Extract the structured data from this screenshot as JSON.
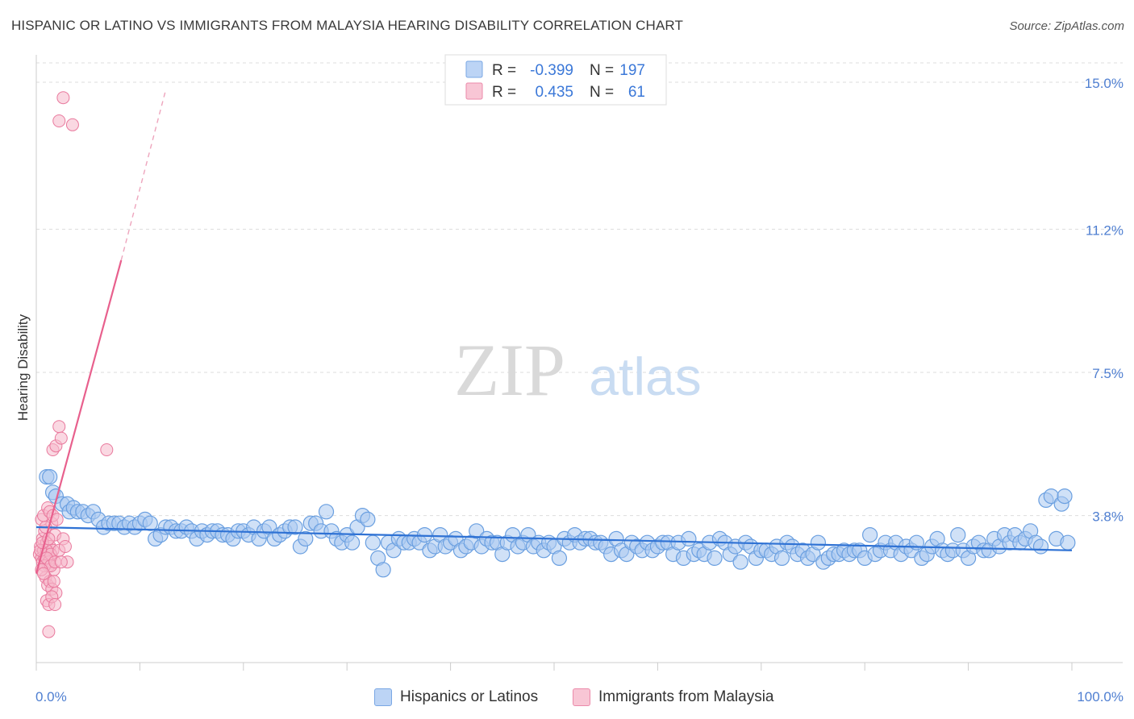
{
  "header": {
    "title": "HISPANIC OR LATINO VS IMMIGRANTS FROM MALAYSIA HEARING DISABILITY CORRELATION CHART",
    "source": "Source: ZipAtlas.com"
  },
  "watermark": {
    "zip": "ZIP",
    "atlas": "atlas"
  },
  "legend_box": {
    "rows": [
      {
        "r_label": "R =",
        "r_value": "-0.399",
        "n_label": "N =",
        "n_value": "197"
      },
      {
        "r_label": "R =",
        "r_value": "0.435",
        "n_label": "N =",
        "n_value": "61"
      }
    ]
  },
  "colors": {
    "blue_fill": "#a9c8f0",
    "blue_stroke": "#6a9fe0",
    "blue_line": "#2f72d4",
    "pink_fill": "#f5b8cb",
    "pink_stroke": "#e9799d",
    "pink_line": "#e8608d",
    "tick_text": "#4f7fd1"
  },
  "chart_data": {
    "type": "scatter",
    "title": "HISPANIC OR LATINO VS IMMIGRANTS FROM MALAYSIA HEARING DISABILITY CORRELATION CHART",
    "xlabel": "",
    "ylabel": "Hearing Disability",
    "xlim": [
      0,
      100
    ],
    "ylim": [
      0,
      15.5
    ],
    "x_tick_labels": [
      "0.0%",
      "100.0%"
    ],
    "y_ticks": [
      {
        "value": 3.8,
        "label": "3.8%"
      },
      {
        "value": 7.5,
        "label": "7.5%"
      },
      {
        "value": 11.2,
        "label": "11.2%"
      },
      {
        "value": 15.0,
        "label": "15.0%"
      }
    ],
    "grid": "horizontal dashed",
    "legend_position": "bottom",
    "series": [
      {
        "name": "Hispanics or Latinos",
        "r": -0.399,
        "n": 197,
        "trend": {
          "x": [
            0,
            100
          ],
          "y": [
            3.5,
            2.9
          ]
        },
        "points": [
          [
            1.0,
            4.8
          ],
          [
            1.3,
            4.8
          ],
          [
            1.6,
            4.4
          ],
          [
            1.9,
            4.3
          ],
          [
            2.5,
            4.1
          ],
          [
            3.0,
            4.1
          ],
          [
            3.2,
            3.9
          ],
          [
            3.6,
            4.0
          ],
          [
            4.0,
            3.9
          ],
          [
            4.5,
            3.9
          ],
          [
            5.0,
            3.8
          ],
          [
            5.5,
            3.9
          ],
          [
            6.0,
            3.7
          ],
          [
            6.5,
            3.5
          ],
          [
            7.0,
            3.6
          ],
          [
            7.5,
            3.6
          ],
          [
            8.0,
            3.6
          ],
          [
            8.5,
            3.5
          ],
          [
            9.0,
            3.6
          ],
          [
            9.5,
            3.5
          ],
          [
            10.0,
            3.6
          ],
          [
            10.5,
            3.7
          ],
          [
            11.0,
            3.6
          ],
          [
            11.5,
            3.2
          ],
          [
            12.0,
            3.3
          ],
          [
            12.5,
            3.5
          ],
          [
            13.0,
            3.5
          ],
          [
            13.5,
            3.4
          ],
          [
            14.0,
            3.4
          ],
          [
            14.5,
            3.5
          ],
          [
            15.0,
            3.4
          ],
          [
            15.5,
            3.2
          ],
          [
            16.0,
            3.4
          ],
          [
            16.5,
            3.3
          ],
          [
            17.0,
            3.4
          ],
          [
            17.5,
            3.4
          ],
          [
            18.0,
            3.3
          ],
          [
            18.5,
            3.3
          ],
          [
            19.0,
            3.2
          ],
          [
            19.5,
            3.4
          ],
          [
            20.0,
            3.4
          ],
          [
            20.5,
            3.3
          ],
          [
            21.0,
            3.5
          ],
          [
            21.5,
            3.2
          ],
          [
            22.0,
            3.4
          ],
          [
            22.5,
            3.5
          ],
          [
            23.0,
            3.2
          ],
          [
            23.5,
            3.3
          ],
          [
            24.0,
            3.4
          ],
          [
            24.5,
            3.5
          ],
          [
            25.0,
            3.5
          ],
          [
            25.5,
            3.0
          ],
          [
            26.0,
            3.2
          ],
          [
            26.5,
            3.6
          ],
          [
            27.0,
            3.6
          ],
          [
            27.5,
            3.4
          ],
          [
            28.0,
            3.9
          ],
          [
            28.5,
            3.4
          ],
          [
            29.0,
            3.2
          ],
          [
            29.5,
            3.1
          ],
          [
            30.0,
            3.3
          ],
          [
            30.5,
            3.1
          ],
          [
            31.0,
            3.5
          ],
          [
            31.5,
            3.8
          ],
          [
            32.0,
            3.7
          ],
          [
            32.5,
            3.1
          ],
          [
            33.0,
            2.7
          ],
          [
            33.5,
            2.4
          ],
          [
            34.0,
            3.1
          ],
          [
            34.5,
            2.9
          ],
          [
            35.0,
            3.2
          ],
          [
            35.5,
            3.1
          ],
          [
            36.0,
            3.1
          ],
          [
            36.5,
            3.2
          ],
          [
            37.0,
            3.1
          ],
          [
            37.5,
            3.3
          ],
          [
            38.0,
            2.9
          ],
          [
            38.5,
            3.0
          ],
          [
            39.0,
            3.3
          ],
          [
            39.5,
            3.0
          ],
          [
            40.0,
            3.1
          ],
          [
            40.5,
            3.2
          ],
          [
            41.0,
            2.9
          ],
          [
            41.5,
            3.0
          ],
          [
            42.0,
            3.1
          ],
          [
            42.5,
            3.4
          ],
          [
            43.0,
            3.0
          ],
          [
            43.5,
            3.2
          ],
          [
            44.0,
            3.1
          ],
          [
            44.5,
            3.1
          ],
          [
            45.0,
            2.8
          ],
          [
            45.5,
            3.1
          ],
          [
            46.0,
            3.3
          ],
          [
            46.5,
            3.0
          ],
          [
            47.0,
            3.1
          ],
          [
            47.5,
            3.3
          ],
          [
            48.0,
            3.0
          ],
          [
            48.5,
            3.1
          ],
          [
            49.0,
            2.9
          ],
          [
            49.5,
            3.1
          ],
          [
            50.0,
            3.0
          ],
          [
            50.5,
            2.7
          ],
          [
            51.0,
            3.2
          ],
          [
            51.5,
            3.1
          ],
          [
            52.0,
            3.3
          ],
          [
            52.5,
            3.1
          ],
          [
            53.0,
            3.2
          ],
          [
            53.5,
            3.2
          ],
          [
            54.0,
            3.1
          ],
          [
            54.5,
            3.1
          ],
          [
            55.0,
            3.0
          ],
          [
            55.5,
            2.8
          ],
          [
            56.0,
            3.2
          ],
          [
            56.5,
            2.9
          ],
          [
            57.0,
            2.8
          ],
          [
            57.5,
            3.1
          ],
          [
            58.0,
            3.0
          ],
          [
            58.5,
            2.9
          ],
          [
            59.0,
            3.1
          ],
          [
            59.5,
            2.9
          ],
          [
            60.0,
            3.0
          ],
          [
            60.5,
            3.1
          ],
          [
            61.0,
            3.1
          ],
          [
            61.5,
            2.8
          ],
          [
            62.0,
            3.1
          ],
          [
            62.5,
            2.7
          ],
          [
            63.0,
            3.2
          ],
          [
            63.5,
            2.8
          ],
          [
            64.0,
            2.9
          ],
          [
            64.5,
            2.8
          ],
          [
            65.0,
            3.1
          ],
          [
            65.5,
            2.7
          ],
          [
            66.0,
            3.2
          ],
          [
            66.5,
            3.1
          ],
          [
            67.0,
            2.8
          ],
          [
            67.5,
            3.0
          ],
          [
            68.0,
            2.6
          ],
          [
            68.5,
            3.1
          ],
          [
            69.0,
            3.0
          ],
          [
            69.5,
            2.7
          ],
          [
            70.0,
            2.9
          ],
          [
            70.5,
            2.9
          ],
          [
            71.0,
            2.8
          ],
          [
            71.5,
            3.0
          ],
          [
            72.0,
            2.7
          ],
          [
            72.5,
            3.1
          ],
          [
            73.0,
            3.0
          ],
          [
            73.5,
            2.8
          ],
          [
            74.0,
            2.9
          ],
          [
            74.5,
            2.7
          ],
          [
            75.0,
            2.8
          ],
          [
            75.5,
            3.1
          ],
          [
            76.0,
            2.6
          ],
          [
            76.5,
            2.7
          ],
          [
            77.0,
            2.8
          ],
          [
            77.5,
            2.8
          ],
          [
            78.0,
            2.9
          ],
          [
            78.5,
            2.8
          ],
          [
            79.0,
            2.9
          ],
          [
            79.5,
            2.9
          ],
          [
            80.0,
            2.7
          ],
          [
            80.5,
            3.3
          ],
          [
            81.0,
            2.8
          ],
          [
            81.5,
            2.9
          ],
          [
            82.0,
            3.1
          ],
          [
            82.5,
            2.9
          ],
          [
            83.0,
            3.1
          ],
          [
            83.5,
            2.8
          ],
          [
            84.0,
            3.0
          ],
          [
            84.5,
            2.9
          ],
          [
            85.0,
            3.1
          ],
          [
            85.5,
            2.7
          ],
          [
            86.0,
            2.8
          ],
          [
            86.5,
            3.0
          ],
          [
            87.0,
            3.2
          ],
          [
            87.5,
            2.9
          ],
          [
            88.0,
            2.8
          ],
          [
            88.5,
            2.9
          ],
          [
            89.0,
            3.3
          ],
          [
            89.5,
            2.9
          ],
          [
            90.0,
            2.7
          ],
          [
            90.5,
            3.0
          ],
          [
            91.0,
            3.1
          ],
          [
            91.5,
            2.9
          ],
          [
            92.0,
            2.9
          ],
          [
            92.5,
            3.2
          ],
          [
            93.0,
            3.0
          ],
          [
            93.5,
            3.3
          ],
          [
            94.0,
            3.1
          ],
          [
            94.5,
            3.3
          ],
          [
            95.0,
            3.1
          ],
          [
            95.5,
            3.2
          ],
          [
            96.0,
            3.4
          ],
          [
            96.5,
            3.1
          ],
          [
            97.0,
            3.0
          ],
          [
            97.5,
            4.2
          ],
          [
            98.0,
            4.3
          ],
          [
            98.5,
            3.2
          ],
          [
            99.0,
            4.1
          ],
          [
            99.3,
            4.3
          ],
          [
            99.6,
            3.1
          ]
        ]
      },
      {
        "name": "Immigrants from Malaysia",
        "r": 0.435,
        "n": 61,
        "trend": {
          "x": [
            0,
            8.2
          ],
          "y": [
            2.3,
            10.4
          ],
          "dashed_to": {
            "x": 12.5,
            "y": 14.8
          }
        },
        "points": [
          [
            0.3,
            2.8
          ],
          [
            0.4,
            3.0
          ],
          [
            0.5,
            2.7
          ],
          [
            0.6,
            3.2
          ],
          [
            0.7,
            2.9
          ],
          [
            0.8,
            3.4
          ],
          [
            0.9,
            2.6
          ],
          [
            1.0,
            3.1
          ],
          [
            1.1,
            2.8
          ],
          [
            1.2,
            2.5
          ],
          [
            1.3,
            3.0
          ],
          [
            1.4,
            2.7
          ],
          [
            1.5,
            3.6
          ],
          [
            1.6,
            2.9
          ],
          [
            1.7,
            2.4
          ],
          [
            1.8,
            3.3
          ],
          [
            0.5,
            3.7
          ],
          [
            0.7,
            3.8
          ],
          [
            0.9,
            3.5
          ],
          [
            1.1,
            4.0
          ],
          [
            1.3,
            3.9
          ],
          [
            0.6,
            2.6
          ],
          [
            0.8,
            2.7
          ],
          [
            1.0,
            2.9
          ],
          [
            1.2,
            2.6
          ],
          [
            1.4,
            2.8
          ],
          [
            0.4,
            2.9
          ],
          [
            0.6,
            3.1
          ],
          [
            0.8,
            2.5
          ],
          [
            1.0,
            2.7
          ],
          [
            1.2,
            3.2
          ],
          [
            1.4,
            2.5
          ],
          [
            1.6,
            3.8
          ],
          [
            1.8,
            2.6
          ],
          [
            2.0,
            3.7
          ],
          [
            2.2,
            2.9
          ],
          [
            0.9,
            2.2
          ],
          [
            1.1,
            2.0
          ],
          [
            1.3,
            2.1
          ],
          [
            1.5,
            1.9
          ],
          [
            1.7,
            2.1
          ],
          [
            1.9,
            1.8
          ],
          [
            1.0,
            1.6
          ],
          [
            1.2,
            1.5
          ],
          [
            1.5,
            1.7
          ],
          [
            1.8,
            1.5
          ],
          [
            1.2,
            0.8
          ],
          [
            1.6,
            5.5
          ],
          [
            1.9,
            5.6
          ],
          [
            2.2,
            6.1
          ],
          [
            2.4,
            5.8
          ],
          [
            6.8,
            5.5
          ],
          [
            2.6,
            3.2
          ],
          [
            2.8,
            3.0
          ],
          [
            3.0,
            2.6
          ],
          [
            2.2,
            14.0
          ],
          [
            2.6,
            14.6
          ],
          [
            3.5,
            13.9
          ],
          [
            0.5,
            2.4
          ],
          [
            0.7,
            2.3
          ],
          [
            2.4,
            2.6
          ]
        ]
      }
    ]
  },
  "bottom_legend": {
    "items": [
      {
        "label": "Hispanics or Latinos"
      },
      {
        "label": "Immigrants from Malaysia"
      }
    ]
  }
}
